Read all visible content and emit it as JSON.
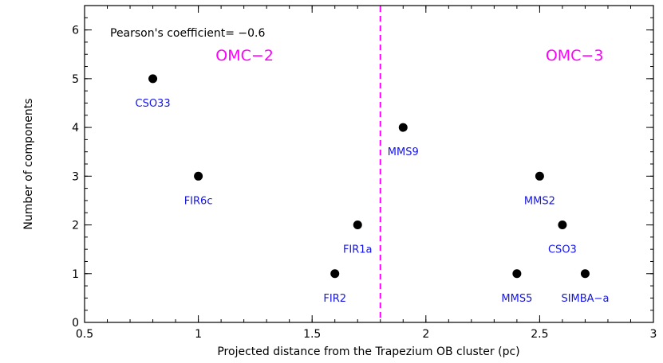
{
  "chart_data": {
    "type": "scatter",
    "xlabel": "Projected distance from the Trapezium OB cluster (pc)",
    "ylabel": "Number of components",
    "xlim": [
      0.5,
      3
    ],
    "ylim": [
      0,
      6.5
    ],
    "xticks": [
      "0.5",
      "1",
      "1.5",
      "2",
      "2.5",
      "3"
    ],
    "yticks": [
      "0",
      "1",
      "2",
      "3",
      "4",
      "5",
      "6"
    ],
    "annotation": "Pearson's coefficient= −0.6",
    "divider_x": 1.8,
    "regions": [
      {
        "label": "OMC−2",
        "x": 1.0,
        "y": 5.5
      },
      {
        "label": "OMC−3",
        "x": 2.45,
        "y": 5.5
      }
    ],
    "points": [
      {
        "x": 0.8,
        "y": 5,
        "label": "CSO33"
      },
      {
        "x": 1.0,
        "y": 3,
        "label": "FIR6c"
      },
      {
        "x": 1.6,
        "y": 1,
        "label": "FIR2"
      },
      {
        "x": 1.7,
        "y": 2,
        "label": "FIR1a"
      },
      {
        "x": 1.9,
        "y": 4,
        "label": "MMS9"
      },
      {
        "x": 2.4,
        "y": 1,
        "label": "MMS5"
      },
      {
        "x": 2.5,
        "y": 3,
        "label": "MMS2"
      },
      {
        "x": 2.6,
        "y": 2,
        "label": "CSO3"
      },
      {
        "x": 2.7,
        "y": 1,
        "label": "SIMBA−a"
      }
    ],
    "colors": {
      "point": "#000000",
      "label": "#1414e6",
      "region": "#ff00ff",
      "divider": "#ff00ff"
    }
  }
}
